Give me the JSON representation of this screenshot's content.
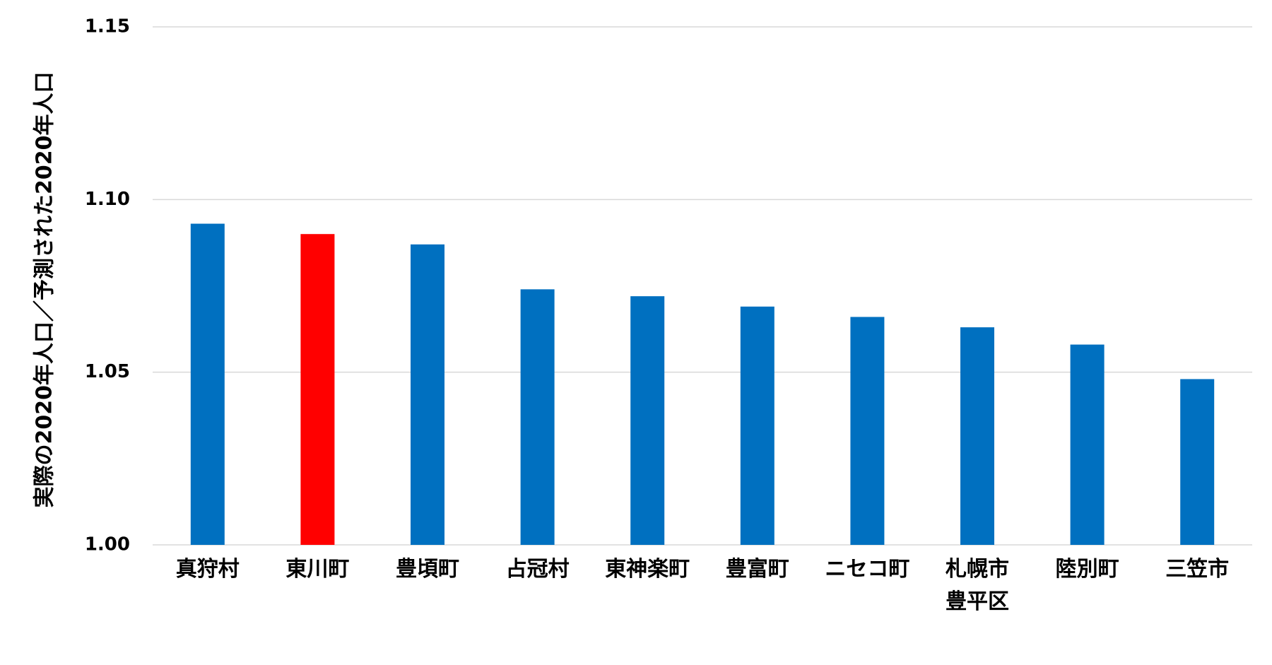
{
  "chart_data": {
    "type": "bar",
    "y_label": "実際の2020年人口／予測された2020年人口",
    "categories": [
      "真狩村",
      "東川町",
      "豊頃町",
      "占冠村",
      "東神楽町",
      "豊富町",
      "ニセコ町",
      "札幌市\n豊平区",
      "陸別町",
      "三笠市"
    ],
    "values": [
      1.093,
      1.09,
      1.087,
      1.074,
      1.072,
      1.069,
      1.066,
      1.063,
      1.058,
      1.048
    ],
    "colors": [
      "#0070c0",
      "#ff0000",
      "#0070c0",
      "#0070c0",
      "#0070c0",
      "#0070c0",
      "#0070c0",
      "#0070c0",
      "#0070c0",
      "#0070c0"
    ],
    "ylim": [
      1.0,
      1.15
    ],
    "yticks": [
      {
        "value": 1.0,
        "label": "1.00"
      },
      {
        "value": 1.05,
        "label": "1.05"
      },
      {
        "value": 1.1,
        "label": "1.10"
      },
      {
        "value": 1.15,
        "label": "1.15"
      }
    ],
    "grid": true
  }
}
